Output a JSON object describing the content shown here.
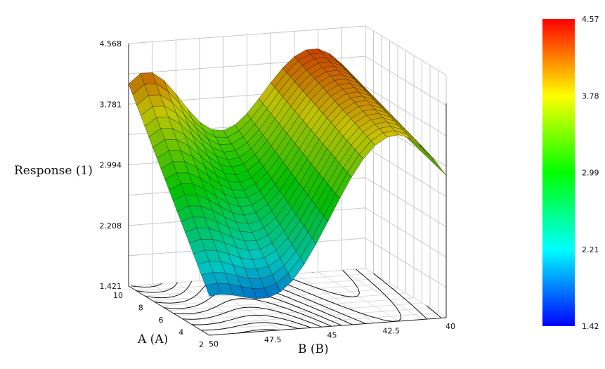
{
  "chart_data": {
    "type": "surface3d",
    "title": "",
    "z_label": "Response (1)",
    "x_label": "A (A)",
    "y_label": "B (B)",
    "z_ticks": [
      "1.421",
      "2.208",
      "2.994",
      "3.781",
      "4.568"
    ],
    "z_range": [
      1.421,
      4.568
    ],
    "a_ticks": [
      "2",
      "4",
      "6",
      "8",
      "10"
    ],
    "a_range": [
      2,
      10
    ],
    "b_ticks": [
      "50",
      "47.5",
      "45",
      "42.5",
      "40"
    ],
    "b_range": [
      40,
      50
    ],
    "colorbar_ticks": [
      "1.42",
      "2.21",
      "2.99",
      "3.78",
      "4.57"
    ],
    "colorbar_range": [
      1.42,
      4.57
    ],
    "colors": {
      "low": "#0000ff",
      "cyan": "#00ffff",
      "green": "#00ff00",
      "yellow": "#ffff00",
      "high": "#ff0000",
      "grid": "#c8c8c8"
    }
  }
}
